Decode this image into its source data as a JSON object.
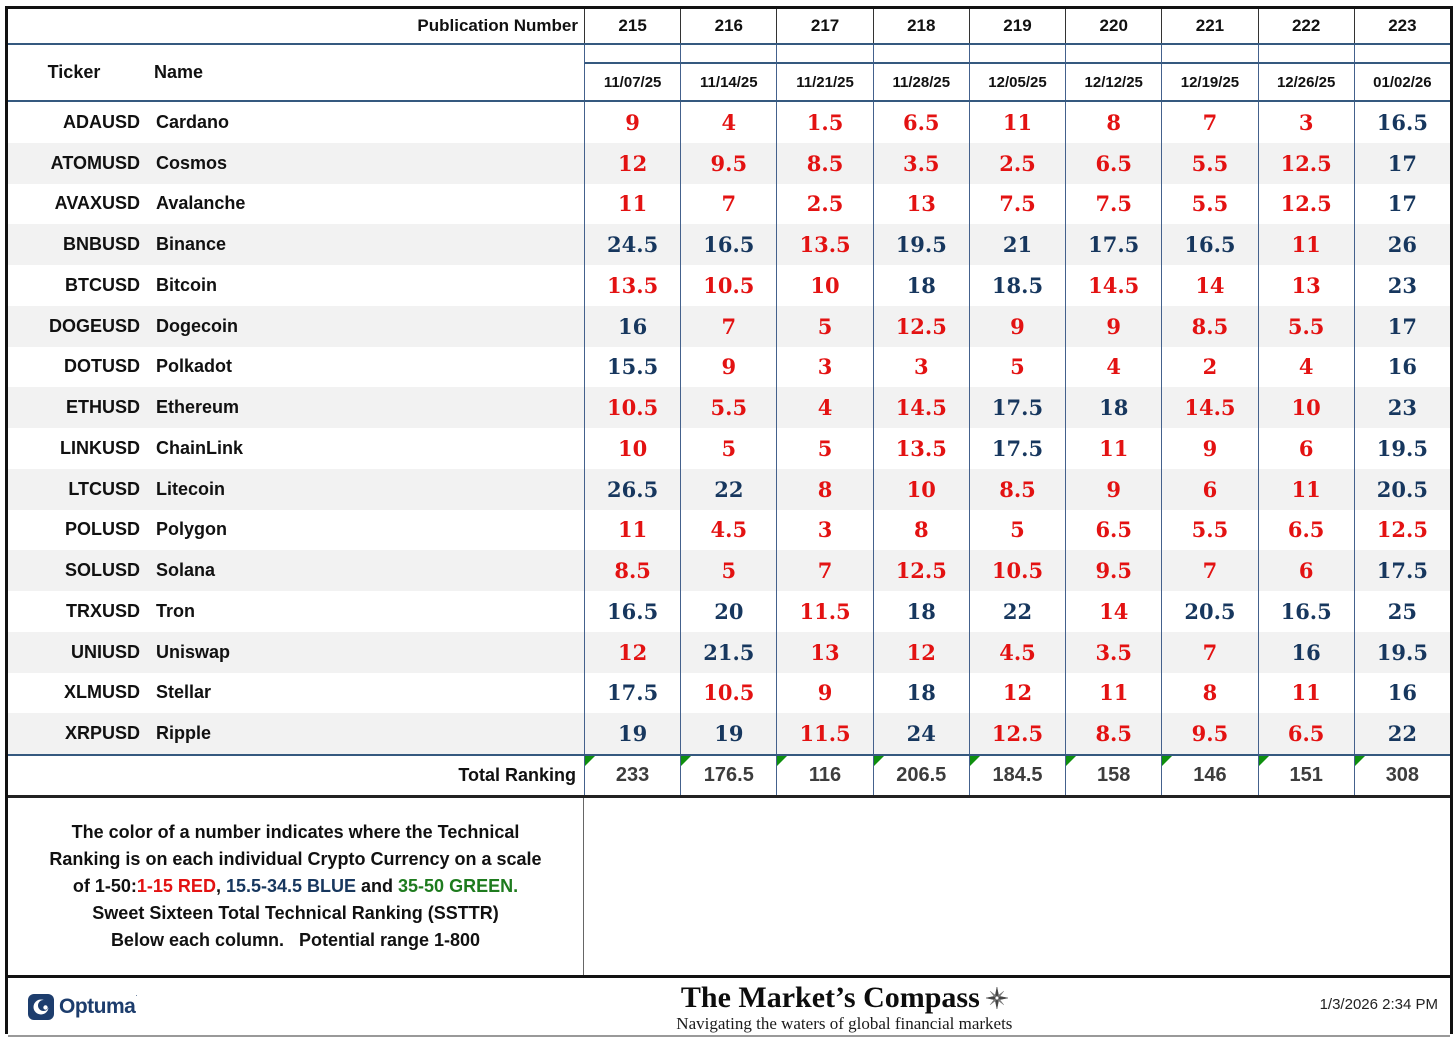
{
  "palette": {
    "red": "#e31212",
    "blue": "#17375e",
    "green": "#1e7b1e",
    "stripe": "#f2f2f2",
    "grid_blue": "#44618c",
    "flag_green": "#0e8f0e",
    "navy": "#1d3d6d"
  },
  "header": {
    "publication_label": "Publication Number",
    "publication_numbers": [
      "215",
      "216",
      "217",
      "218",
      "219",
      "220",
      "221",
      "222",
      "223"
    ],
    "dates": [
      "11/07/25",
      "11/14/25",
      "11/21/25",
      "11/28/25",
      "12/05/25",
      "12/12/25",
      "12/19/25",
      "12/26/25",
      "01/02/26"
    ],
    "ticker_label": "Ticker",
    "name_label": "Name"
  },
  "rows": [
    {
      "ticker": "ADAUSD",
      "name": "Cardano",
      "values": [
        9,
        4,
        1.5,
        6.5,
        11,
        8,
        7,
        3,
        16.5
      ]
    },
    {
      "ticker": "ATOMUSD",
      "name": "Cosmos",
      "values": [
        12,
        9.5,
        8.5,
        3.5,
        2.5,
        6.5,
        5.5,
        12.5,
        17
      ]
    },
    {
      "ticker": "AVAXUSD",
      "name": "Avalanche",
      "values": [
        11,
        7,
        2.5,
        13,
        7.5,
        7.5,
        5.5,
        12.5,
        17
      ]
    },
    {
      "ticker": "BNBUSD",
      "name": "Binance",
      "values": [
        24.5,
        16.5,
        13.5,
        19.5,
        21,
        17.5,
        16.5,
        11,
        26
      ]
    },
    {
      "ticker": "BTCUSD",
      "name": "Bitcoin",
      "values": [
        13.5,
        10.5,
        10,
        18,
        18.5,
        14.5,
        14,
        13,
        23
      ]
    },
    {
      "ticker": "DOGEUSD",
      "name": "Dogecoin",
      "values": [
        16,
        7,
        5,
        12.5,
        9,
        9,
        8.5,
        5.5,
        17
      ]
    },
    {
      "ticker": "DOTUSD",
      "name": "Polkadot",
      "values": [
        15.5,
        9,
        3,
        3,
        5,
        4,
        2,
        4,
        16
      ]
    },
    {
      "ticker": "ETHUSD",
      "name": "Ethereum",
      "values": [
        10.5,
        5.5,
        4,
        14.5,
        17.5,
        18,
        14.5,
        10,
        23
      ]
    },
    {
      "ticker": "LINKUSD",
      "name": "ChainLink",
      "values": [
        10,
        5,
        5,
        13.5,
        17.5,
        11,
        9,
        6,
        19.5
      ]
    },
    {
      "ticker": "LTCUSD",
      "name": "Litecoin",
      "values": [
        26.5,
        22,
        8,
        10,
        8.5,
        9,
        6,
        11,
        20.5
      ]
    },
    {
      "ticker": "POLUSD",
      "name": "Polygon",
      "values": [
        11,
        4.5,
        3,
        8,
        5,
        6.5,
        5.5,
        6.5,
        12.5
      ]
    },
    {
      "ticker": "SOLUSD",
      "name": "Solana",
      "values": [
        8.5,
        5,
        7,
        12.5,
        10.5,
        9.5,
        7,
        6,
        17.5
      ]
    },
    {
      "ticker": "TRXUSD",
      "name": "Tron",
      "values": [
        16.5,
        20,
        11.5,
        18,
        22,
        14,
        20.5,
        16.5,
        25
      ]
    },
    {
      "ticker": "UNIUSD",
      "name": "Uniswap",
      "values": [
        12,
        21.5,
        13,
        12,
        4.5,
        3.5,
        7,
        16,
        19.5
      ]
    },
    {
      "ticker": "XLMUSD",
      "name": "Stellar",
      "values": [
        17.5,
        10.5,
        9,
        18,
        12,
        11,
        8,
        11,
        16
      ]
    },
    {
      "ticker": "XRPUSD",
      "name": "Ripple",
      "values": [
        19,
        19,
        11.5,
        24,
        12.5,
        8.5,
        9.5,
        6.5,
        22
      ]
    }
  ],
  "totals": {
    "label": "Total Ranking",
    "values": [
      233,
      176.5,
      116,
      206.5,
      184.5,
      158,
      146,
      151,
      308
    ]
  },
  "color_rule": {
    "red_max": 15,
    "blue_max": 34.5
  },
  "legend": {
    "lines": [
      [
        {
          "t": "The color of a number indicates where the Technical",
          "c": "black"
        }
      ],
      [
        {
          "t": "Ranking is on each individual Crypto Currency on a scale",
          "c": "black"
        }
      ],
      [
        {
          "t": "of 1-50:",
          "c": "black"
        },
        {
          "t": "1-15 RED",
          "c": "red"
        },
        {
          "t": ", ",
          "c": "black"
        },
        {
          "t": "15.5-34.5 BLUE",
          "c": "blue"
        },
        {
          "t": " and ",
          "c": "black"
        },
        {
          "t": "35-50 GREEN.",
          "c": "green"
        }
      ],
      [
        {
          "t": "Sweet Sixteen Total Technical Ranking (SSTTR)",
          "c": "black"
        }
      ],
      [
        {
          "t": "Below each column.   Potential range 1-800",
          "c": "black"
        }
      ]
    ]
  },
  "footer": {
    "optuma_label": "Optuma",
    "masthead_title": "The Market’s Compass",
    "masthead_subtitle": "Navigating the waters of global financial markets",
    "timestamp": "1/3/2026 2:34 PM"
  }
}
